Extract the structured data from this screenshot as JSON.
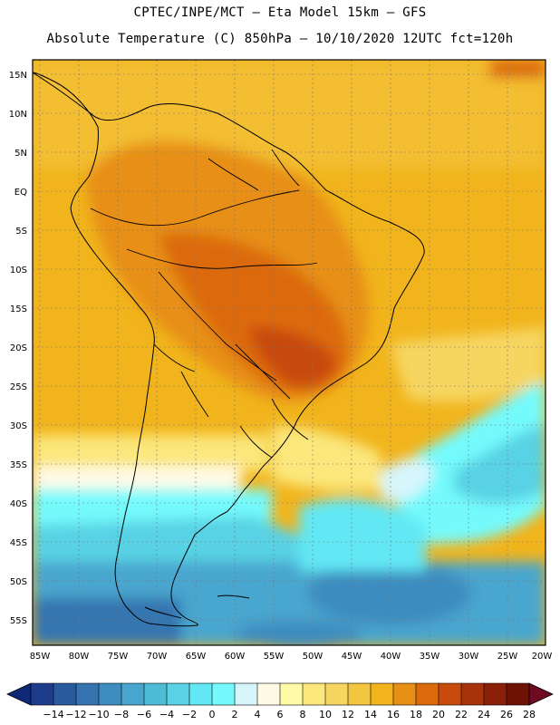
{
  "header": {
    "line1": "CPTEC/INPE/MCT –  Eta Model 15km – GFS",
    "line2": "Absolute Temperature (C) 850hPa – 10/10/2020 12UTC fct=120h"
  },
  "axes": {
    "lat_labels": [
      "15N",
      "10N",
      "5N",
      "EQ",
      "5S",
      "10S",
      "15S",
      "20S",
      "25S",
      "30S",
      "35S",
      "40S",
      "45S",
      "50S",
      "55S"
    ],
    "lon_labels": [
      "85W",
      "80W",
      "75W",
      "70W",
      "65W",
      "60W",
      "55W",
      "50W",
      "45W",
      "40W",
      "35W",
      "30W",
      "25W",
      "20W"
    ]
  },
  "colorbar": {
    "unit": "C",
    "labels": [
      "-14",
      "-12",
      "-10",
      "-8",
      "-6",
      "-4",
      "-2",
      "0",
      "2",
      "4",
      "6",
      "8",
      "10",
      "12",
      "14",
      "16",
      "18",
      "20",
      "22",
      "24",
      "26",
      "28"
    ],
    "colors": [
      "#1e3c8c",
      "#2a5a9e",
      "#3574b0",
      "#3e8cc0",
      "#48a6ce",
      "#4fbcd6",
      "#58d2e4",
      "#62e8f4",
      "#74fafc",
      "#d6f6fc",
      "#fffae6",
      "#fefaa6",
      "#fbe77c",
      "#f6d660",
      "#f3c640",
      "#f1b41c",
      "#e78f14",
      "#dc6a0c",
      "#c84a0c",
      "#a8320a",
      "#8a2008",
      "#6e1206"
    ],
    "under_color": "#102878",
    "over_color": "#6e0a22"
  }
}
